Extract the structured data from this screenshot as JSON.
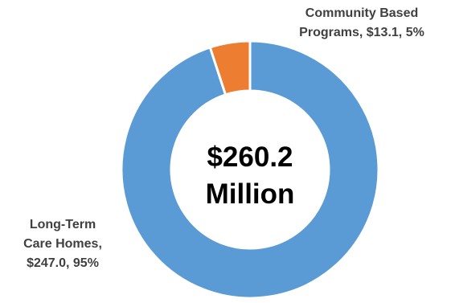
{
  "chart_data": {
    "type": "pie",
    "variant": "donut",
    "center_text": [
      "$260.2",
      "Million"
    ],
    "slices": [
      {
        "name": "Community Based Programs",
        "value": 13.1,
        "percent": 5,
        "color": "#ED7D31",
        "label_lines": [
          "Community Based",
          "Programs, $13.1, 5%"
        ]
      },
      {
        "name": "Long-Term Care Homes",
        "value": 247.0,
        "percent": 95,
        "color": "#5B9BD5",
        "label_lines": [
          "Long-Term",
          "Care Homes,",
          "$247.0, 95%"
        ]
      }
    ]
  }
}
